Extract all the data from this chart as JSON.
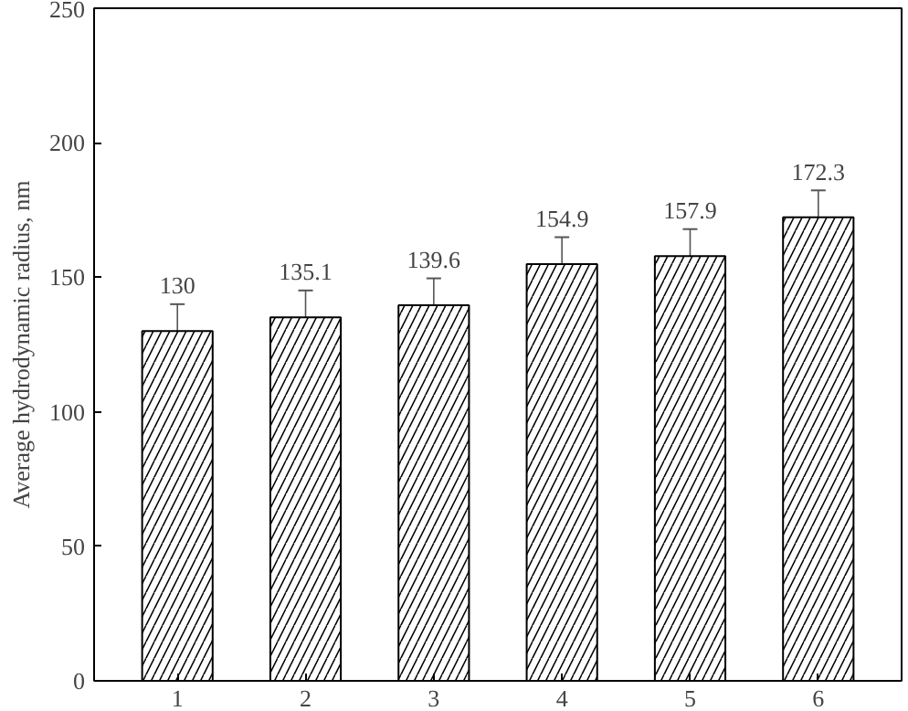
{
  "chart_data": {
    "type": "bar",
    "ylabel": "Average hydrodynamic radius, nm",
    "categories": [
      "1",
      "2",
      "3",
      "4",
      "5",
      "6"
    ],
    "values": [
      130,
      135.1,
      139.6,
      154.9,
      157.9,
      172.3
    ],
    "errors": [
      10,
      10,
      10,
      10,
      10,
      10
    ],
    "color": "#ffffff",
    "ylim": [
      0,
      250
    ],
    "yticks": [
      0,
      50,
      100,
      150,
      200,
      250
    ],
    "data_labels": true,
    "grid": false
  }
}
